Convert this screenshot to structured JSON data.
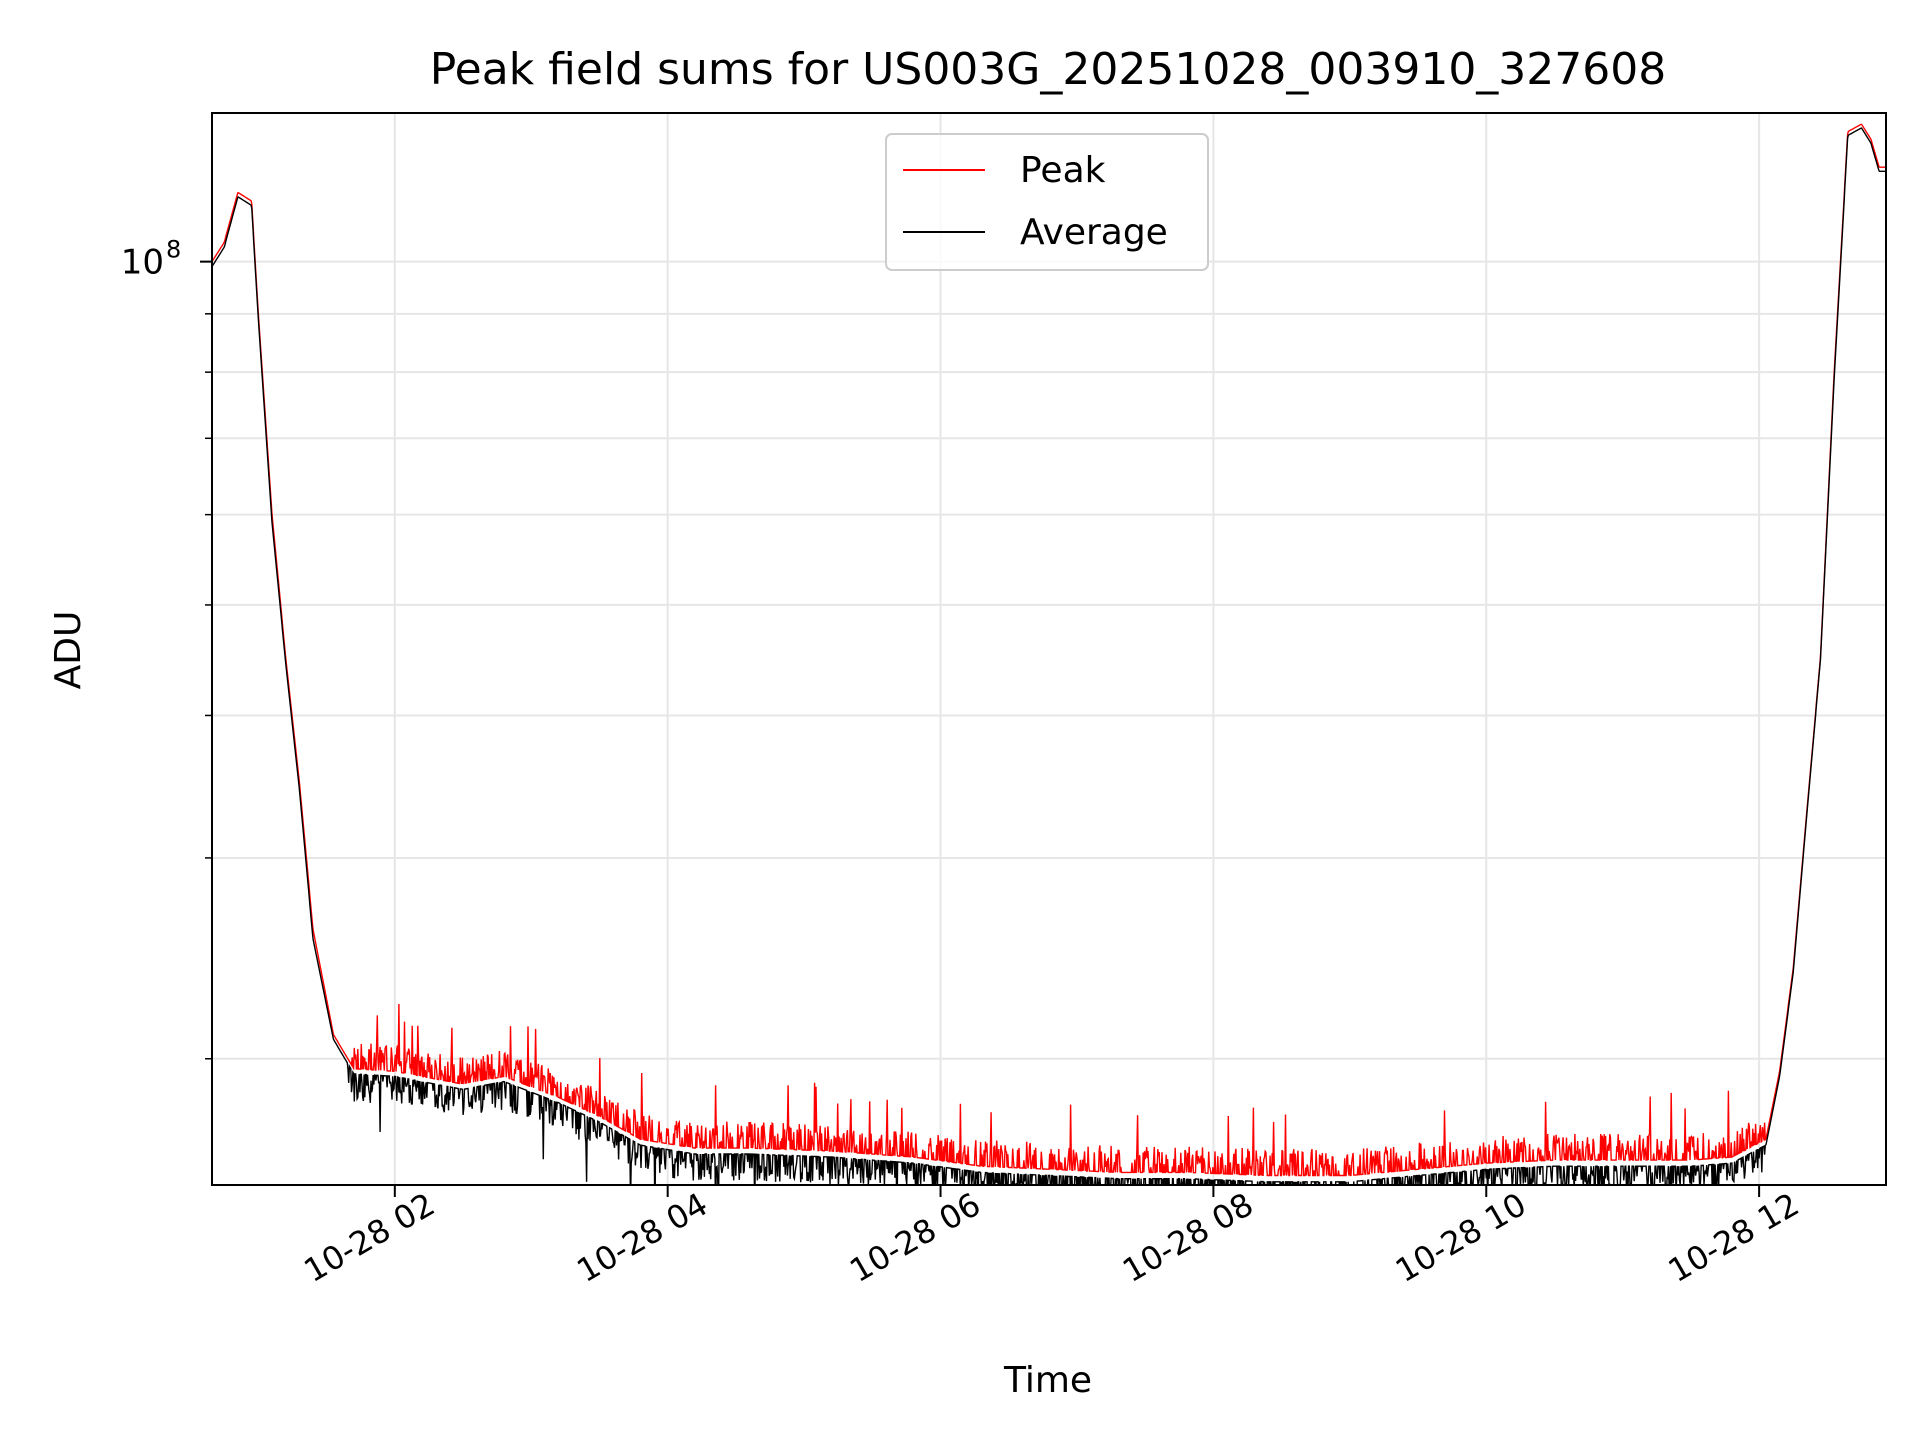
{
  "chart_data": {
    "type": "line",
    "title": "Peak field sums for US003G_20251028_003910_327608",
    "xlabel": "Time",
    "ylabel": "ADU",
    "yscale": "log",
    "ylim": [
      15500000,
      135000000
    ],
    "xlim_hours": [
      0.66,
      12.93
    ],
    "x_tick_hours": [
      2,
      4,
      6,
      8,
      10,
      12
    ],
    "x_tick_labels": [
      "10-28 02",
      "10-28 04",
      "10-28 06",
      "10-28 08",
      "10-28 10",
      "10-28 12"
    ],
    "y_major_tick": {
      "value": 100000000,
      "base": "10",
      "exponent": "8"
    },
    "y_minor_ticks": [
      20000000,
      30000000,
      40000000,
      50000000,
      60000000,
      70000000,
      80000000,
      90000000
    ],
    "grid": true,
    "legend_position": "top-center",
    "series": [
      {
        "name": "Peak",
        "color": "#ff0000",
        "points": [
          [
            0.66,
            100000000
          ],
          [
            0.75,
            104000000
          ],
          [
            0.85,
            115000000
          ],
          [
            0.95,
            113000000
          ],
          [
            1.0,
            90000000
          ],
          [
            1.1,
            60000000
          ],
          [
            1.2,
            45000000
          ],
          [
            1.3,
            35000000
          ],
          [
            1.4,
            26000000
          ],
          [
            1.55,
            21000000
          ],
          [
            1.7,
            19600000
          ],
          [
            2.0,
            19500000
          ],
          [
            2.5,
            19000000
          ],
          [
            2.8,
            19300000
          ],
          [
            3.2,
            18500000
          ],
          [
            3.5,
            17800000
          ],
          [
            3.8,
            17000000
          ],
          [
            4.2,
            16700000
          ],
          [
            4.6,
            16700000
          ],
          [
            5.2,
            16600000
          ],
          [
            5.8,
            16400000
          ],
          [
            6.3,
            16100000
          ],
          [
            6.8,
            16000000
          ],
          [
            7.3,
            15900000
          ],
          [
            7.8,
            15900000
          ],
          [
            8.4,
            15800000
          ],
          [
            9.0,
            15800000
          ],
          [
            9.5,
            16000000
          ],
          [
            10.0,
            16200000
          ],
          [
            10.5,
            16300000
          ],
          [
            11.0,
            16300000
          ],
          [
            11.5,
            16300000
          ],
          [
            11.8,
            16400000
          ],
          [
            12.05,
            17000000
          ],
          [
            12.15,
            19500000
          ],
          [
            12.25,
            24000000
          ],
          [
            12.35,
            33000000
          ],
          [
            12.45,
            45000000
          ],
          [
            12.55,
            80000000
          ],
          [
            12.65,
            130000000
          ],
          [
            12.75,
            132000000
          ],
          [
            12.82,
            128000000
          ],
          [
            12.88,
            121000000
          ],
          [
            12.93,
            121000000
          ]
        ]
      },
      {
        "name": "Average",
        "color": "#000000",
        "points": [
          [
            0.66,
            99000000
          ],
          [
            0.75,
            103000000
          ],
          [
            0.85,
            114000000
          ],
          [
            0.95,
            112000000
          ],
          [
            1.0,
            89000000
          ],
          [
            1.1,
            59000000
          ],
          [
            1.2,
            44500000
          ],
          [
            1.3,
            34500000
          ],
          [
            1.4,
            25500000
          ],
          [
            1.55,
            20800000
          ],
          [
            1.7,
            19400000
          ],
          [
            2.0,
            19300000
          ],
          [
            2.5,
            18800000
          ],
          [
            2.8,
            19100000
          ],
          [
            3.2,
            18300000
          ],
          [
            3.5,
            17600000
          ],
          [
            3.8,
            16800000
          ],
          [
            4.2,
            16500000
          ],
          [
            4.6,
            16500000
          ],
          [
            5.2,
            16400000
          ],
          [
            5.8,
            16200000
          ],
          [
            6.3,
            15900000
          ],
          [
            6.8,
            15800000
          ],
          [
            7.3,
            15700000
          ],
          [
            7.8,
            15700000
          ],
          [
            8.4,
            15600000
          ],
          [
            9.0,
            15600000
          ],
          [
            9.5,
            15800000
          ],
          [
            10.0,
            16000000
          ],
          [
            10.5,
            16100000
          ],
          [
            11.0,
            16100000
          ],
          [
            11.5,
            16100000
          ],
          [
            11.8,
            16200000
          ],
          [
            12.05,
            16800000
          ],
          [
            12.15,
            19300000
          ],
          [
            12.25,
            23800000
          ],
          [
            12.35,
            32800000
          ],
          [
            12.45,
            44800000
          ],
          [
            12.55,
            79000000
          ],
          [
            12.65,
            129000000
          ],
          [
            12.75,
            131000000
          ],
          [
            12.82,
            127000000
          ],
          [
            12.88,
            120000000
          ],
          [
            12.93,
            120000000
          ]
        ]
      }
    ]
  }
}
